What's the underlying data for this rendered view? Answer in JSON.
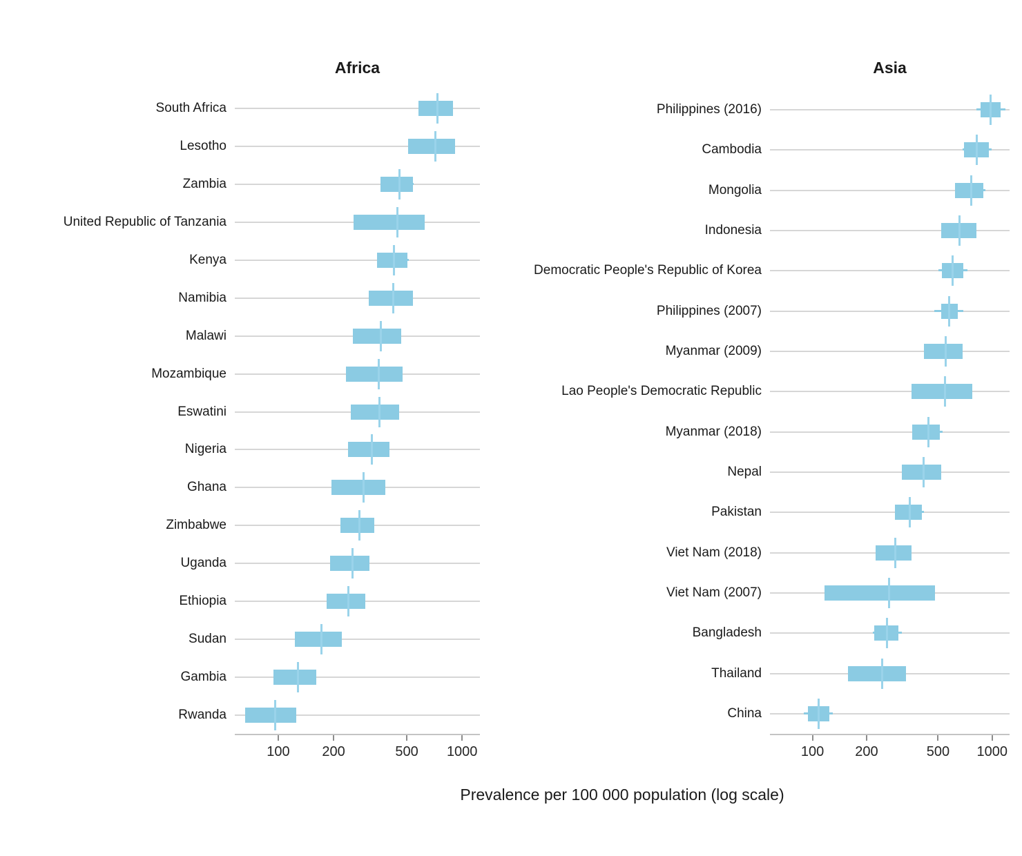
{
  "chart_data": {
    "type": "crossbar",
    "title": "",
    "xlabel": "Prevalence per 100 000 population (log scale)",
    "x_scale": "log",
    "x_domain": [
      58,
      1250
    ],
    "x_ticks": [
      100,
      200,
      500,
      1000
    ],
    "grid": "one horizontal gridline per row, no vertical gridlines",
    "legend": "none",
    "marks": "blue box = uncertainty interval (low-high), vertical blue line = point estimate (mid), thin blue line = estimate-centered interval",
    "panels": [
      {
        "title": "Africa",
        "rows": [
          {
            "label": "South Africa",
            "low": 580,
            "mid": 737,
            "high": 895
          },
          {
            "label": "Lesotho",
            "low": 510,
            "mid": 714,
            "high": 915
          },
          {
            "label": "Zambia",
            "low": 360,
            "mid": 455,
            "high": 540
          },
          {
            "label": "United Republic of Tanzania",
            "low": 257,
            "mid": 443,
            "high": 624
          },
          {
            "label": "Kenya",
            "low": 344,
            "mid": 426,
            "high": 503
          },
          {
            "label": "Namibia",
            "low": 310,
            "mid": 423,
            "high": 540
          },
          {
            "label": "Malawi",
            "low": 255,
            "mid": 362,
            "high": 465
          },
          {
            "label": "Mozambique",
            "low": 234,
            "mid": 353,
            "high": 475
          },
          {
            "label": "Eswatini",
            "low": 248,
            "mid": 354,
            "high": 456
          },
          {
            "label": "Nigeria",
            "low": 240,
            "mid": 324,
            "high": 402
          },
          {
            "label": "Ghana",
            "low": 195,
            "mid": 291,
            "high": 383
          },
          {
            "label": "Zimbabwe",
            "low": 218,
            "mid": 276,
            "high": 333
          },
          {
            "label": "Uganda",
            "low": 192,
            "mid": 253,
            "high": 312
          },
          {
            "label": "Ethiopia",
            "low": 183,
            "mid": 240,
            "high": 297
          },
          {
            "label": "Sudan",
            "low": 123,
            "mid": 172,
            "high": 222
          },
          {
            "label": "Gambia",
            "low": 94,
            "mid": 128,
            "high": 161
          },
          {
            "label": "Rwanda",
            "low": 66,
            "mid": 96,
            "high": 125
          }
        ]
      },
      {
        "title": "Asia",
        "rows": [
          {
            "label": "Philippines (2016)",
            "low": 865,
            "mid": 982,
            "high": 1111
          },
          {
            "label": "Cambodia",
            "low": 695,
            "mid": 822,
            "high": 959
          },
          {
            "label": "Mongolia",
            "low": 622,
            "mid": 762,
            "high": 897
          },
          {
            "label": "Indonesia",
            "low": 522,
            "mid": 660,
            "high": 817
          },
          {
            "label": "Democratic People's Republic of Korea",
            "low": 526,
            "mid": 604,
            "high": 692
          },
          {
            "label": "Philippines (2007)",
            "low": 519,
            "mid": 576,
            "high": 641
          },
          {
            "label": "Myanmar (2009)",
            "low": 419,
            "mid": 550,
            "high": 685
          },
          {
            "label": "Lao People's Democratic Republic",
            "low": 355,
            "mid": 545,
            "high": 772
          },
          {
            "label": "Myanmar (2018)",
            "low": 360,
            "mid": 440,
            "high": 513
          },
          {
            "label": "Nepal",
            "low": 315,
            "mid": 416,
            "high": 520
          },
          {
            "label": "Pakistan",
            "low": 287,
            "mid": 348,
            "high": 407
          },
          {
            "label": "Viet Nam (2018)",
            "low": 225,
            "mid": 290,
            "high": 356
          },
          {
            "label": "Viet Nam (2007)",
            "low": 117,
            "mid": 266,
            "high": 480
          },
          {
            "label": "Bangladesh",
            "low": 221,
            "mid": 260,
            "high": 300
          },
          {
            "label": "Thailand",
            "low": 157,
            "mid": 244,
            "high": 331
          },
          {
            "label": "China",
            "low": 94,
            "mid": 108,
            "high": 124
          }
        ]
      }
    ]
  },
  "colors": {
    "box": "#8BCBE3",
    "estimate_line": "#9AD3EA",
    "grid": "#D6D6D6",
    "axis": "#C4C4C4",
    "tick_mark": "#8C8C8C",
    "text": "#1A1A1A"
  }
}
